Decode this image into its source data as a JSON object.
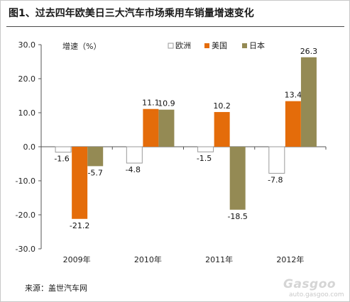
{
  "title": "图1、过去四年欧美日三大汽车市场乘用车销量增速变化",
  "source": "来源：盖世汽车网",
  "watermark": {
    "brand": "Gasgoo",
    "url": "auto.gasgoo.com"
  },
  "chart_data": {
    "type": "bar",
    "title": "图1、过去四年欧美日三大汽车市场乘用车销量增速变化",
    "xlabel": "",
    "ylabel": "增速（%）",
    "ylim": [
      -30,
      30
    ],
    "yticks": [
      30,
      20,
      10,
      0,
      -10,
      -20,
      -30
    ],
    "ytick_labels": [
      "30.0",
      "20.0",
      "10.0",
      "0.0",
      "-10.0",
      "-20.0",
      "-30.0"
    ],
    "categories": [
      "2009年",
      "2010年",
      "2011年",
      "2012年"
    ],
    "series": [
      {
        "name": "欧洲",
        "color": "#ffffff",
        "values": [
          -1.6,
          -4.8,
          -1.5,
          -7.8
        ],
        "labels": [
          "-1.6",
          "-4.8",
          "-1.5",
          "-7.8"
        ]
      },
      {
        "name": "美国",
        "color": "#e46c0a",
        "values": [
          -21.2,
          11.1,
          10.2,
          13.4
        ],
        "labels": [
          "-21.2",
          "11.1",
          "10.2",
          "13.4"
        ]
      },
      {
        "name": "日本",
        "color": "#948a54",
        "values": [
          -5.7,
          10.9,
          -18.5,
          26.3
        ],
        "labels": [
          "-5.7",
          "10.9",
          "-18.5",
          "26.3"
        ]
      }
    ],
    "legend_position": "top-right",
    "grid": false
  }
}
